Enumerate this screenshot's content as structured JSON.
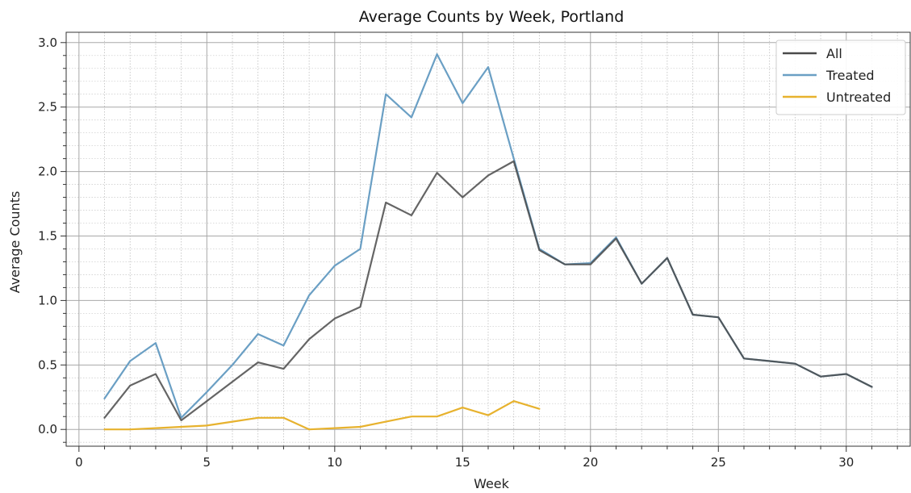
{
  "chart_data": {
    "type": "line",
    "title": "Average Counts by Week, Portland",
    "xlabel": "Week",
    "ylabel": "Average Counts",
    "xlim": [
      -0.5,
      32.5
    ],
    "ylim": [
      -0.13,
      3.08
    ],
    "xticks": [
      0,
      5,
      10,
      15,
      20,
      25,
      30
    ],
    "yticks": [
      0.0,
      0.5,
      1.0,
      1.5,
      2.0,
      2.5,
      3.0
    ],
    "xtick_labels": [
      "0",
      "5",
      "10",
      "15",
      "20",
      "25",
      "30"
    ],
    "ytick_labels": [
      "0.0",
      "0.5",
      "1.0",
      "1.5",
      "2.0",
      "2.5",
      "3.0"
    ],
    "grid": true,
    "legend_position": "top-right",
    "series": [
      {
        "name": "All",
        "color": "#4a4a4a",
        "x": [
          1,
          2,
          3,
          4,
          5,
          6,
          7,
          8,
          9,
          10,
          11,
          12,
          13,
          14,
          15,
          16,
          17,
          18,
          19,
          20,
          21,
          22,
          23,
          24,
          25,
          26,
          27,
          28,
          29,
          30,
          31
        ],
        "y": [
          0.09,
          0.34,
          0.43,
          0.07,
          0.22,
          0.37,
          0.52,
          0.47,
          0.7,
          0.86,
          0.95,
          1.76,
          1.66,
          1.99,
          1.8,
          1.97,
          2.08,
          1.39,
          1.28,
          1.28,
          1.48,
          1.13,
          1.33,
          0.89,
          0.87,
          0.55,
          0.53,
          0.51,
          0.41,
          0.43,
          0.33
        ]
      },
      {
        "name": "Treated",
        "color": "#6a9fc4",
        "x": [
          1,
          2,
          3,
          4,
          5,
          6,
          7,
          8,
          9,
          10,
          11,
          12,
          13,
          14,
          15,
          16,
          17,
          18,
          19,
          20,
          21,
          22,
          23,
          24,
          25,
          26,
          27,
          28,
          29,
          30,
          31
        ],
        "y": [
          0.24,
          0.53,
          0.67,
          0.09,
          0.29,
          0.5,
          0.74,
          0.65,
          1.04,
          1.27,
          1.4,
          2.6,
          2.42,
          2.91,
          2.53,
          2.81,
          2.1,
          1.4,
          1.28,
          1.29,
          1.49,
          1.13,
          1.33,
          0.89,
          0.87,
          0.55,
          0.53,
          0.51,
          0.41,
          0.43,
          0.33
        ]
      },
      {
        "name": "Untreated",
        "color": "#e7b22e",
        "x": [
          1,
          2,
          3,
          4,
          5,
          6,
          7,
          8,
          9,
          10,
          11,
          12,
          13,
          14,
          15,
          16,
          17,
          18
        ],
        "y": [
          0.0,
          0.0,
          0.01,
          0.02,
          0.03,
          0.06,
          0.09,
          0.09,
          0.0,
          0.01,
          0.02,
          0.06,
          0.1,
          0.1,
          0.17,
          0.11,
          0.22,
          0.16
        ]
      }
    ]
  }
}
